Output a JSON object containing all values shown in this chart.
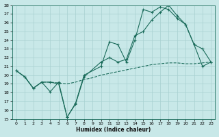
{
  "background_color": "#c8e8e8",
  "grid_color": "#a8d0d0",
  "line_color": "#1a6b5a",
  "xlabel": "Humidex (Indice chaleur)",
  "xlim": [
    -0.5,
    23.5
  ],
  "ylim": [
    15,
    28
  ],
  "yticks": [
    15,
    16,
    17,
    18,
    19,
    20,
    21,
    22,
    23,
    24,
    25,
    26,
    27,
    28
  ],
  "xticks": [
    0,
    1,
    2,
    3,
    4,
    5,
    6,
    7,
    8,
    9,
    10,
    11,
    12,
    13,
    14,
    15,
    16,
    17,
    18,
    19,
    20,
    21,
    22,
    23
  ],
  "line1_x": [
    0,
    1,
    2,
    3,
    4,
    5,
    6,
    7,
    8,
    10,
    11,
    12,
    13,
    14,
    15,
    16,
    17,
    18,
    19,
    20,
    21,
    22,
    23
  ],
  "line1_y": [
    20.5,
    19.8,
    18.5,
    19.2,
    18.1,
    19.2,
    15.2,
    16.8,
    20.0,
    21.0,
    23.8,
    23.5,
    21.5,
    24.0,
    27.5,
    27.2,
    27.8,
    27.5,
    26.5,
    25.8,
    23.5,
    23.0,
    21.5
  ],
  "line2_x": [
    0,
    1,
    2,
    3,
    4,
    5,
    6,
    7,
    8,
    10,
    11,
    12,
    13,
    14,
    15,
    16,
    17,
    18,
    19,
    20,
    21,
    22,
    23
  ],
  "line2_y": [
    20.5,
    19.8,
    18.5,
    19.2,
    19.2,
    19.0,
    15.2,
    16.7,
    19.8,
    21.5,
    22.0,
    21.5,
    21.8,
    24.5,
    25.0,
    26.3,
    27.2,
    28.0,
    26.8,
    25.8,
    23.5,
    21.0,
    21.5
  ],
  "line3_x": [
    0,
    1,
    2,
    3,
    4,
    5,
    6,
    7,
    8,
    9,
    10,
    11,
    12,
    13,
    14,
    15,
    16,
    17,
    18,
    19,
    20,
    21,
    22,
    23
  ],
  "line3_y": [
    20.5,
    19.8,
    18.5,
    19.2,
    19.2,
    19.1,
    19.0,
    19.2,
    19.5,
    19.7,
    20.0,
    20.2,
    20.4,
    20.6,
    20.8,
    21.0,
    21.2,
    21.3,
    21.4,
    21.4,
    21.3,
    21.3,
    21.4,
    21.5
  ]
}
